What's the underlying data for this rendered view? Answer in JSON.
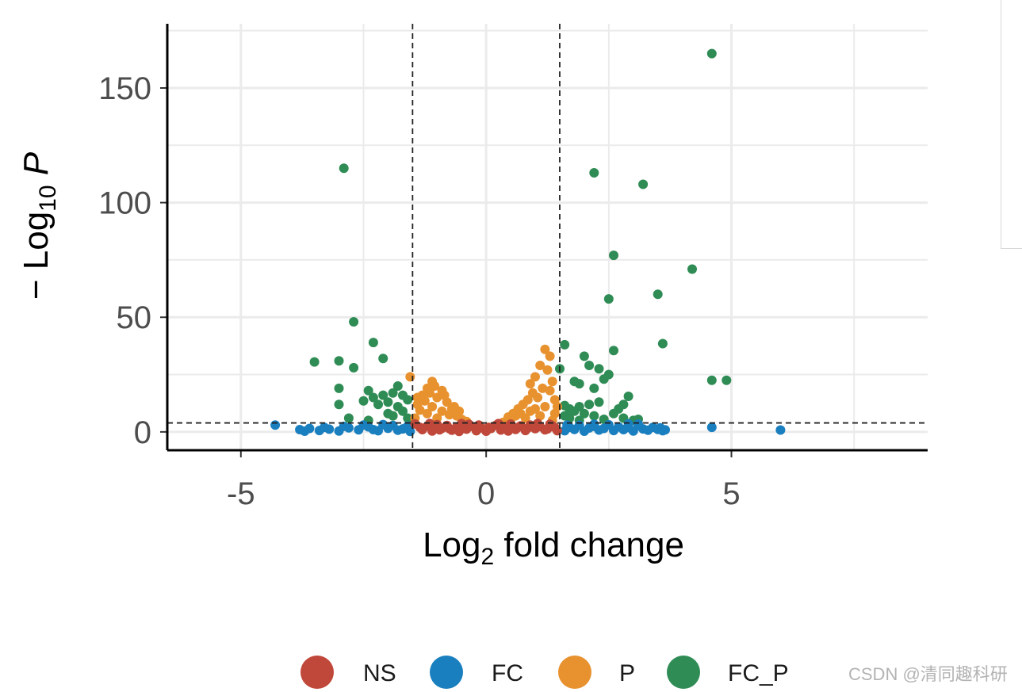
{
  "chart_data": {
    "type": "scatter",
    "xlabel": "Log2 fold change",
    "ylabel": "−Log10 P",
    "xlim": [
      -6.5,
      9.0
    ],
    "ylim": [
      -8,
      178
    ],
    "x_ticks": [
      -5,
      0,
      5
    ],
    "y_ticks": [
      0,
      50,
      100,
      150
    ],
    "x_tick_labels": [
      "-5",
      "0",
      "5"
    ],
    "y_tick_labels": [
      "0",
      "50",
      "100",
      "150"
    ],
    "grid": true,
    "cutoffs": {
      "fold_change": [
        -1.5,
        1.5
      ],
      "neg_log10_p": 3.9
    },
    "legend_position": "bottom",
    "legend": [
      "NS",
      "FC",
      "P",
      "FC_P"
    ],
    "colors": {
      "NS": "#c0483a",
      "FC": "#1a7fbf",
      "P": "#e8922f",
      "FC_P": "#2f8c55"
    },
    "series": [
      {
        "name": "FC_P",
        "points": [
          [
            4.6,
            165
          ],
          [
            -2.9,
            115
          ],
          [
            2.2,
            113
          ],
          [
            3.2,
            108
          ],
          [
            2.6,
            77
          ],
          [
            4.2,
            71
          ],
          [
            3.5,
            60
          ],
          [
            2.5,
            58
          ],
          [
            -2.7,
            48
          ],
          [
            -2.3,
            39
          ],
          [
            3.6,
            38.5
          ],
          [
            1.6,
            38
          ],
          [
            -2.1,
            32
          ],
          [
            -3.5,
            30.5
          ],
          [
            -3.0,
            31
          ],
          [
            2.6,
            35.5
          ],
          [
            -2.7,
            28
          ],
          [
            1.5,
            27.5
          ],
          [
            2.0,
            33
          ],
          [
            2.1,
            29
          ],
          [
            2.3,
            27.5
          ],
          [
            2.5,
            25
          ],
          [
            2.4,
            23
          ],
          [
            1.8,
            22
          ],
          [
            1.9,
            21
          ],
          [
            2.2,
            19
          ],
          [
            4.6,
            22.5
          ],
          [
            4.9,
            22.5
          ],
          [
            -3.0,
            19
          ],
          [
            -2.4,
            18
          ],
          [
            -2.3,
            15
          ],
          [
            -1.8,
            20
          ],
          [
            -1.9,
            17
          ],
          [
            -2.1,
            16
          ],
          [
            -1.7,
            16
          ],
          [
            -1.6,
            14
          ],
          [
            -2.0,
            13
          ],
          [
            -2.2,
            12
          ],
          [
            -1.8,
            11
          ],
          [
            -1.7,
            9
          ],
          [
            -2.0,
            8
          ],
          [
            -2.5,
            13.5
          ],
          [
            -3.0,
            12
          ],
          [
            -2.8,
            6
          ],
          [
            -2.4,
            5
          ],
          [
            -1.9,
            7
          ],
          [
            -1.6,
            6
          ],
          [
            2.9,
            15.5
          ],
          [
            2.8,
            12
          ],
          [
            2.3,
            13
          ],
          [
            2.1,
            12
          ],
          [
            1.9,
            11
          ],
          [
            1.7,
            10
          ],
          [
            1.6,
            11.5
          ],
          [
            1.8,
            9
          ],
          [
            2.0,
            8
          ],
          [
            2.2,
            7
          ],
          [
            2.6,
            8
          ],
          [
            2.8,
            6
          ],
          [
            3.1,
            5.5
          ],
          [
            1.6,
            7
          ],
          [
            1.7,
            6
          ],
          [
            2.4,
            5.5
          ],
          [
            3.0,
            5
          ],
          [
            1.9,
            5
          ],
          [
            2.7,
            10
          ]
        ]
      },
      {
        "name": "FC",
        "points": [
          [
            -4.3,
            3
          ],
          [
            6.0,
            0.8
          ],
          [
            4.6,
            2
          ],
          [
            -3.8,
            1
          ],
          [
            -3.6,
            1.5
          ],
          [
            -3.4,
            0.6
          ],
          [
            -3.2,
            1.2
          ],
          [
            -3.0,
            0.4
          ],
          [
            -2.8,
            1.8
          ],
          [
            -2.6,
            0.9
          ],
          [
            -2.4,
            2.2
          ],
          [
            -2.2,
            0.5
          ],
          [
            -2.0,
            1.6
          ],
          [
            -1.9,
            2.8
          ],
          [
            -1.8,
            0.7
          ],
          [
            -1.7,
            1.3
          ],
          [
            -1.6,
            2.5
          ],
          [
            -2.5,
            3.0
          ],
          [
            -2.9,
            2.4
          ],
          [
            -3.3,
            2.0
          ],
          [
            -3.7,
            0.3
          ],
          [
            -2.1,
            3.2
          ],
          [
            -1.55,
            0.2
          ],
          [
            -2.3,
            1.0
          ],
          [
            1.6,
            0.5
          ],
          [
            1.7,
            2.0
          ],
          [
            1.8,
            1.1
          ],
          [
            1.9,
            2.9
          ],
          [
            2.0,
            0.3
          ],
          [
            2.1,
            1.7
          ],
          [
            2.2,
            2.4
          ],
          [
            2.3,
            0.8
          ],
          [
            2.4,
            1.5
          ],
          [
            2.5,
            3.1
          ],
          [
            2.6,
            0.6
          ],
          [
            2.7,
            2.2
          ],
          [
            2.8,
            1.0
          ],
          [
            2.9,
            1.9
          ],
          [
            3.0,
            0.4
          ],
          [
            3.1,
            2.7
          ],
          [
            3.2,
            1.3
          ],
          [
            3.3,
            0.7
          ],
          [
            3.4,
            2.0
          ],
          [
            3.5,
            1.1
          ],
          [
            3.6,
            0.5
          ],
          [
            3.1,
            3.4
          ],
          [
            2.9,
            3.5
          ],
          [
            2.2,
            3.3
          ],
          [
            1.65,
            3.0
          ],
          [
            3.55,
            1.8
          ],
          [
            3.65,
            0.9
          ]
        ]
      },
      {
        "name": "P",
        "points": [
          [
            1.2,
            36
          ],
          [
            1.3,
            33
          ],
          [
            1.1,
            29
          ],
          [
            1.25,
            27
          ],
          [
            1.0,
            24
          ],
          [
            0.9,
            21
          ],
          [
            1.35,
            22
          ],
          [
            1.15,
            19
          ],
          [
            0.95,
            17
          ],
          [
            1.05,
            15
          ],
          [
            0.85,
            14
          ],
          [
            0.75,
            12
          ],
          [
            1.3,
            18
          ],
          [
            1.4,
            14
          ],
          [
            1.2,
            11
          ],
          [
            1.0,
            10
          ],
          [
            0.9,
            9
          ],
          [
            0.7,
            8
          ],
          [
            0.6,
            7
          ],
          [
            0.5,
            5.5
          ],
          [
            0.4,
            4.5
          ],
          [
            1.4,
            8
          ],
          [
            1.1,
            7
          ],
          [
            0.8,
            6
          ],
          [
            1.35,
            5
          ],
          [
            0.65,
            10
          ],
          [
            0.55,
            8
          ],
          [
            1.45,
            11
          ],
          [
            0.45,
            6.5
          ],
          [
            0.35,
            4.2
          ],
          [
            -1.55,
            24
          ],
          [
            -1.1,
            22
          ],
          [
            -1.2,
            19
          ],
          [
            -0.9,
            18
          ],
          [
            -1.3,
            16
          ],
          [
            -1.0,
            15
          ],
          [
            -0.8,
            13
          ],
          [
            -1.4,
            12
          ],
          [
            -1.1,
            11
          ],
          [
            -0.7,
            10
          ],
          [
            -0.9,
            9
          ],
          [
            -1.2,
            8
          ],
          [
            -0.6,
            7
          ],
          [
            -1.0,
            6
          ],
          [
            -0.5,
            5.5
          ],
          [
            -1.35,
            9.5
          ],
          [
            -0.4,
            4.5
          ],
          [
            -1.45,
            6
          ],
          [
            -0.75,
            7.5
          ],
          [
            -1.25,
            13.5
          ],
          [
            -0.65,
            11
          ],
          [
            -1.05,
            20
          ],
          [
            -0.85,
            16
          ],
          [
            -1.15,
            17
          ],
          [
            -0.55,
            9
          ],
          [
            -1.4,
            15
          ]
        ]
      },
      {
        "name": "NS",
        "points": [
          [
            -1.45,
            3.5
          ],
          [
            -1.3,
            1.0
          ],
          [
            -1.2,
            2.5
          ],
          [
            -1.1,
            0.4
          ],
          [
            -1.0,
            3.2
          ],
          [
            -0.9,
            1.6
          ],
          [
            -0.8,
            2.8
          ],
          [
            -0.7,
            0.7
          ],
          [
            -0.6,
            2.1
          ],
          [
            -0.5,
            3.6
          ],
          [
            -0.4,
            1.2
          ],
          [
            -0.3,
            2.4
          ],
          [
            -0.2,
            0.5
          ],
          [
            -0.1,
            1.8
          ],
          [
            0.0,
            0.3
          ],
          [
            0.1,
            1.5
          ],
          [
            0.2,
            2.9
          ],
          [
            0.3,
            0.8
          ],
          [
            0.4,
            2.2
          ],
          [
            0.5,
            3.4
          ],
          [
            0.6,
            1.1
          ],
          [
            0.7,
            2.6
          ],
          [
            0.8,
            0.6
          ],
          [
            0.9,
            3.0
          ],
          [
            1.0,
            1.4
          ],
          [
            1.1,
            2.3
          ],
          [
            1.2,
            0.9
          ],
          [
            1.3,
            3.3
          ],
          [
            1.4,
            1.9
          ],
          [
            1.45,
            0.5
          ],
          [
            -1.35,
            2.0
          ],
          [
            -0.95,
            0.9
          ],
          [
            -0.55,
            0.2
          ],
          [
            -0.15,
            3.0
          ],
          [
            0.25,
            3.6
          ],
          [
            0.65,
            2.0
          ],
          [
            1.05,
            3.7
          ],
          [
            1.35,
            2.7
          ],
          [
            -0.35,
            3.3
          ],
          [
            0.05,
            2.0
          ],
          [
            -1.15,
            3.7
          ],
          [
            0.85,
            1.7
          ],
          [
            -0.75,
            1.4
          ],
          [
            0.45,
            0.4
          ],
          [
            1.25,
            1.3
          ]
        ]
      }
    ]
  },
  "watermark": "CSDN @清同趣科研"
}
